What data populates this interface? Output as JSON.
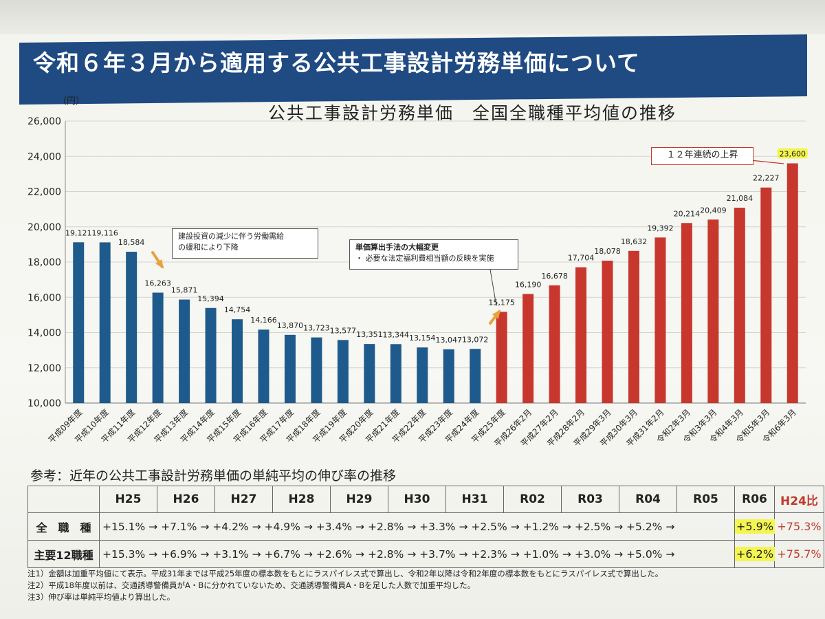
{
  "title": "令和６年３月から適用する公共工事設計労務単価について",
  "chart": {
    "title": "公共工事設計労務単価　全国全職種平均値の推移",
    "unit": "（円）",
    "callouts": [
      {
        "lines": [
          "建設投資の減少に伴う労働需給",
          "の緩和により下降"
        ]
      },
      {
        "lines": [
          "単価算出手法の大幅変更",
          "・ 必要な法定福利費相当額の反映を実施"
        ]
      },
      {
        "lines": [
          "１２年連続の上昇"
        ]
      }
    ],
    "colors": {
      "blue": "#1f5a8c",
      "red": "#c8372d",
      "arrow": "#e8a23a",
      "highlight": "#f3f550"
    }
  },
  "chart_data": {
    "type": "bar",
    "title": "公共工事設計労務単価　全国全職種平均値の推移",
    "ylabel": "（円）",
    "ylim": [
      10000,
      26000
    ],
    "yticks": [
      "10,000",
      "12,000",
      "14,000",
      "16,000",
      "18,000",
      "20,000",
      "22,000",
      "24,000",
      "26,000"
    ],
    "categories": [
      "平成09年度",
      "平成10年度",
      "平成11年度",
      "平成12年度",
      "平成13年度",
      "平成14年度",
      "平成15年度",
      "平成16年度",
      "平成17年度",
      "平成18年度",
      "平成19年度",
      "平成20年度",
      "平成21年度",
      "平成22年度",
      "平成23年度",
      "平成24年度",
      "平成25年度",
      "平成26年2月",
      "平成27年2月",
      "平成28年2月",
      "平成29年3月",
      "平成30年3月",
      "平成31年2月",
      "令和2年3月",
      "令和3年3月",
      "令和4年3月",
      "令和5年3月",
      "令和6年3月"
    ],
    "values": [
      19121,
      19116,
      18584,
      16263,
      15871,
      15394,
      14754,
      14166,
      13870,
      13723,
      13577,
      13351,
      13344,
      13154,
      13047,
      13072,
      15175,
      16190,
      16678,
      17704,
      18078,
      18632,
      19392,
      20214,
      20409,
      21084,
      22227,
      23600
    ],
    "value_labels": [
      "19,121",
      "19,116",
      "18,584",
      "16,263",
      "15,871",
      "15,394",
      "14,754",
      "14,166",
      "13,870",
      "13,723",
      "13,577",
      "13,351",
      "13,344",
      "13,154",
      "13,047",
      "13,072",
      "15,175",
      "16,190",
      "16,678",
      "17,704",
      "18,078",
      "18,632",
      "19,392",
      "20,214",
      "20,409",
      "21,084",
      "22,227",
      "23,600"
    ],
    "series_color_split_index": 16
  },
  "reference": {
    "title": "参考：近年の公共工事設計労務単価の単純平均の伸び率の推移",
    "headers": [
      "H25",
      "H26",
      "H27",
      "H28",
      "H29",
      "H30",
      "H31",
      "R02",
      "R03",
      "R04",
      "R05",
      "R06",
      "H24比"
    ],
    "rows": [
      {
        "label": "全　職　種",
        "values": [
          "+15.1%",
          "+7.1%",
          "+4.2%",
          "+4.9%",
          "+3.4%",
          "+2.8%",
          "+3.3%",
          "+2.5%",
          "+1.2%",
          "+2.5%",
          "+5.2%",
          "+5.9%"
        ],
        "total": "+75.3%"
      },
      {
        "label": "主要12職種",
        "values": [
          "+15.3%",
          "+6.9%",
          "+3.1%",
          "+6.7%",
          "+2.6%",
          "+2.8%",
          "+3.7%",
          "+2.3%",
          "+1.0%",
          "+3.0%",
          "+5.0%",
          "+6.2%"
        ],
        "total": "+75.7%"
      }
    ]
  },
  "notes": [
    "注1）金額は加重平均値にて表示。平成31年までは平成25年度の標本数をもとにラスパイレス式で算出し、令和2年以降は令和2年度の標本数をもとにラスパイレス式で算出した。",
    "注2）平成18年度以前は、交通誘導警備員がA・Bに分かれていないため、交通誘導警備員A・Bを足した人数で加重平均した。",
    "注3）伸び率は単純平均値より算出した。"
  ]
}
